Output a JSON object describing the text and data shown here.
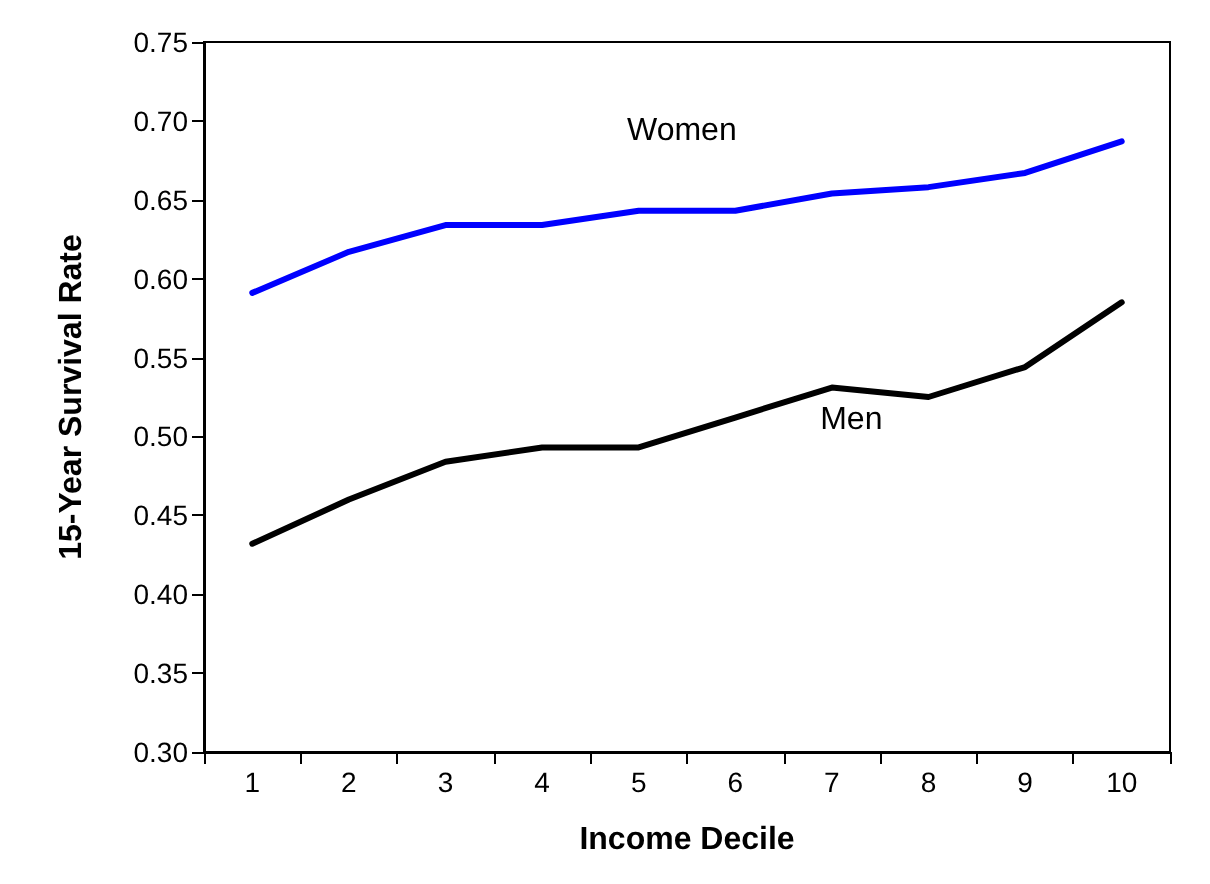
{
  "chart_data": {
    "type": "line",
    "xlabel": "Income Decile",
    "ylabel": "15-Year Survival Rate",
    "categories": [
      "1",
      "2",
      "3",
      "4",
      "5",
      "6",
      "7",
      "8",
      "9",
      "10"
    ],
    "series": [
      {
        "name": "Women",
        "color": "#0000ff",
        "values": [
          0.591,
          0.617,
          0.634,
          0.634,
          0.643,
          0.643,
          0.654,
          0.658,
          0.667,
          0.687
        ]
      },
      {
        "name": "Men",
        "color": "#000000",
        "values": [
          0.432,
          0.46,
          0.484,
          0.493,
          0.493,
          0.512,
          0.531,
          0.525,
          0.544,
          0.585
        ]
      }
    ],
    "ylim": [
      0.3,
      0.75
    ],
    "yticks": [
      {
        "value": 0.3,
        "label": "0.30"
      },
      0.35,
      {
        "value": 0.4,
        "label": "0.40"
      },
      0.45,
      {
        "value": 0.5,
        "label": "0.50"
      },
      0.55,
      {
        "value": 0.6,
        "label": "0.60"
      },
      0.65,
      {
        "value": 0.7,
        "label": "0.70"
      },
      0.75
    ],
    "grid": false,
    "legend": false,
    "marker": "none",
    "line_style": "solid"
  }
}
